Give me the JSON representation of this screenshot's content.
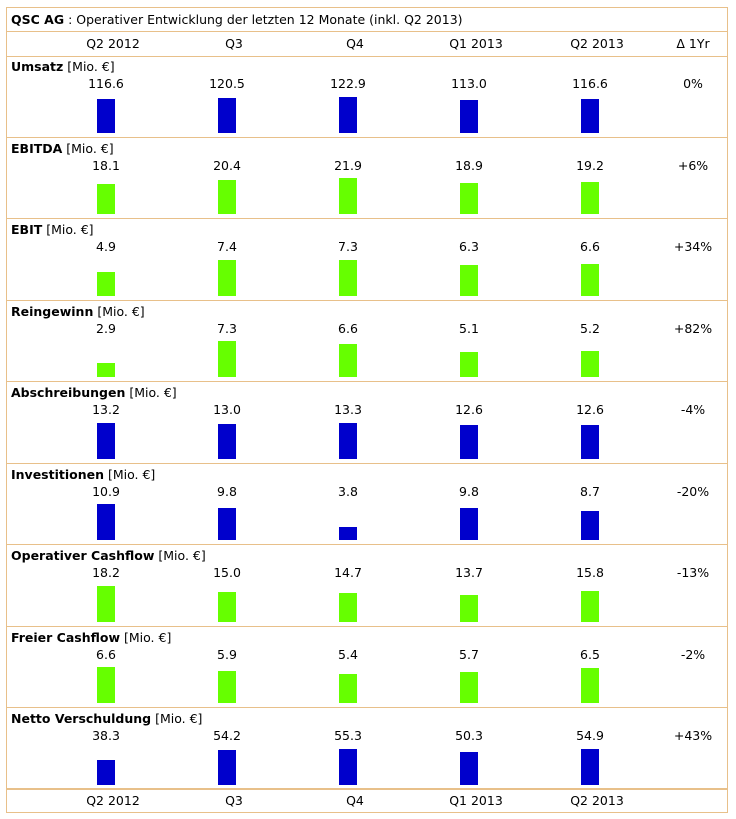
{
  "title": {
    "company": "QSC AG",
    "subtitle": " : Operativer Entwicklung der letzten 12 Monate (inkl. Q2 2013)"
  },
  "header": {
    "periods": [
      "Q2 2012",
      "Q3",
      "Q4",
      "Q1 2013",
      "Q2 2013"
    ],
    "delta_label": "Δ 1Yr"
  },
  "footer": {
    "periods": [
      "Q2 2012",
      "Q3",
      "Q4",
      "Q1 2013",
      "Q2 2013"
    ]
  },
  "colors": {
    "blue": "#0000cc",
    "green": "#66ff00",
    "border": "#e8c08a"
  },
  "chart_data": [
    {
      "type": "bar",
      "name": "Umsatz",
      "unit": "[Mio. €]",
      "categories": [
        "Q2 2012",
        "Q3",
        "Q4",
        "Q1 2013",
        "Q2 2013"
      ],
      "values": [
        116.6,
        120.5,
        122.9,
        113.0,
        116.6
      ],
      "labels": [
        "116.6",
        "120.5",
        "122.9",
        "113.0",
        "116.6"
      ],
      "delta": "0%",
      "color": "blue"
    },
    {
      "type": "bar",
      "name": "EBITDA",
      "unit": "[Mio. €]",
      "categories": [
        "Q2 2012",
        "Q3",
        "Q4",
        "Q1 2013",
        "Q2 2013"
      ],
      "values": [
        18.1,
        20.4,
        21.9,
        18.9,
        19.2
      ],
      "labels": [
        "18.1",
        "20.4",
        "21.9",
        "18.9",
        "19.2"
      ],
      "delta": "+6%",
      "color": "green"
    },
    {
      "type": "bar",
      "name": "EBIT",
      "unit": "[Mio. €]",
      "categories": [
        "Q2 2012",
        "Q3",
        "Q4",
        "Q1 2013",
        "Q2 2013"
      ],
      "values": [
        4.9,
        7.4,
        7.3,
        6.3,
        6.6
      ],
      "labels": [
        "4.9",
        "7.4",
        "7.3",
        "6.3",
        "6.6"
      ],
      "delta": "+34%",
      "color": "green"
    },
    {
      "type": "bar",
      "name": "Reingewinn",
      "unit": "[Mio. €]",
      "categories": [
        "Q2 2012",
        "Q3",
        "Q4",
        "Q1 2013",
        "Q2 2013"
      ],
      "values": [
        2.9,
        7.3,
        6.6,
        5.1,
        5.2
      ],
      "labels": [
        "2.9",
        "7.3",
        "6.6",
        "5.1",
        "5.2"
      ],
      "delta": "+82%",
      "color": "green"
    },
    {
      "type": "bar",
      "name": "Abschreibungen",
      "unit": "[Mio. €]",
      "categories": [
        "Q2 2012",
        "Q3",
        "Q4",
        "Q1 2013",
        "Q2 2013"
      ],
      "values": [
        13.2,
        13.0,
        13.3,
        12.6,
        12.6
      ],
      "labels": [
        "13.2",
        "13.0",
        "13.3",
        "12.6",
        "12.6"
      ],
      "delta": "-4%",
      "color": "blue"
    },
    {
      "type": "bar",
      "name": "Investitionen",
      "unit": "[Mio. €]",
      "categories": [
        "Q2 2012",
        "Q3",
        "Q4",
        "Q1 2013",
        "Q2 2013"
      ],
      "values": [
        10.9,
        9.8,
        3.8,
        9.8,
        8.7
      ],
      "labels": [
        "10.9",
        "9.8",
        "3.8",
        "9.8",
        "8.7"
      ],
      "delta": "-20%",
      "color": "blue"
    },
    {
      "type": "bar",
      "name": "Operativer Cashflow",
      "unit": "[Mio. €]",
      "categories": [
        "Q2 2012",
        "Q3",
        "Q4",
        "Q1 2013",
        "Q2 2013"
      ],
      "values": [
        18.2,
        15.0,
        14.7,
        13.7,
        15.8
      ],
      "labels": [
        "18.2",
        "15.0",
        "14.7",
        "13.7",
        "15.8"
      ],
      "delta": "-13%",
      "color": "green"
    },
    {
      "type": "bar",
      "name": "Freier Cashflow",
      "unit": "[Mio. €]",
      "categories": [
        "Q2 2012",
        "Q3",
        "Q4",
        "Q1 2013",
        "Q2 2013"
      ],
      "values": [
        6.6,
        5.9,
        5.4,
        5.7,
        6.5
      ],
      "labels": [
        "6.6",
        "5.9",
        "5.4",
        "5.7",
        "6.5"
      ],
      "delta": "-2%",
      "color": "green"
    },
    {
      "type": "bar",
      "name": "Netto Verschuldung",
      "unit": "[Mio. €]",
      "categories": [
        "Q2 2012",
        "Q3",
        "Q4",
        "Q1 2013",
        "Q2 2013"
      ],
      "values": [
        38.3,
        54.2,
        55.3,
        50.3,
        54.9
      ],
      "labels": [
        "38.3",
        "54.2",
        "55.3",
        "50.3",
        "54.9"
      ],
      "delta": "+43%",
      "color": "blue"
    }
  ]
}
